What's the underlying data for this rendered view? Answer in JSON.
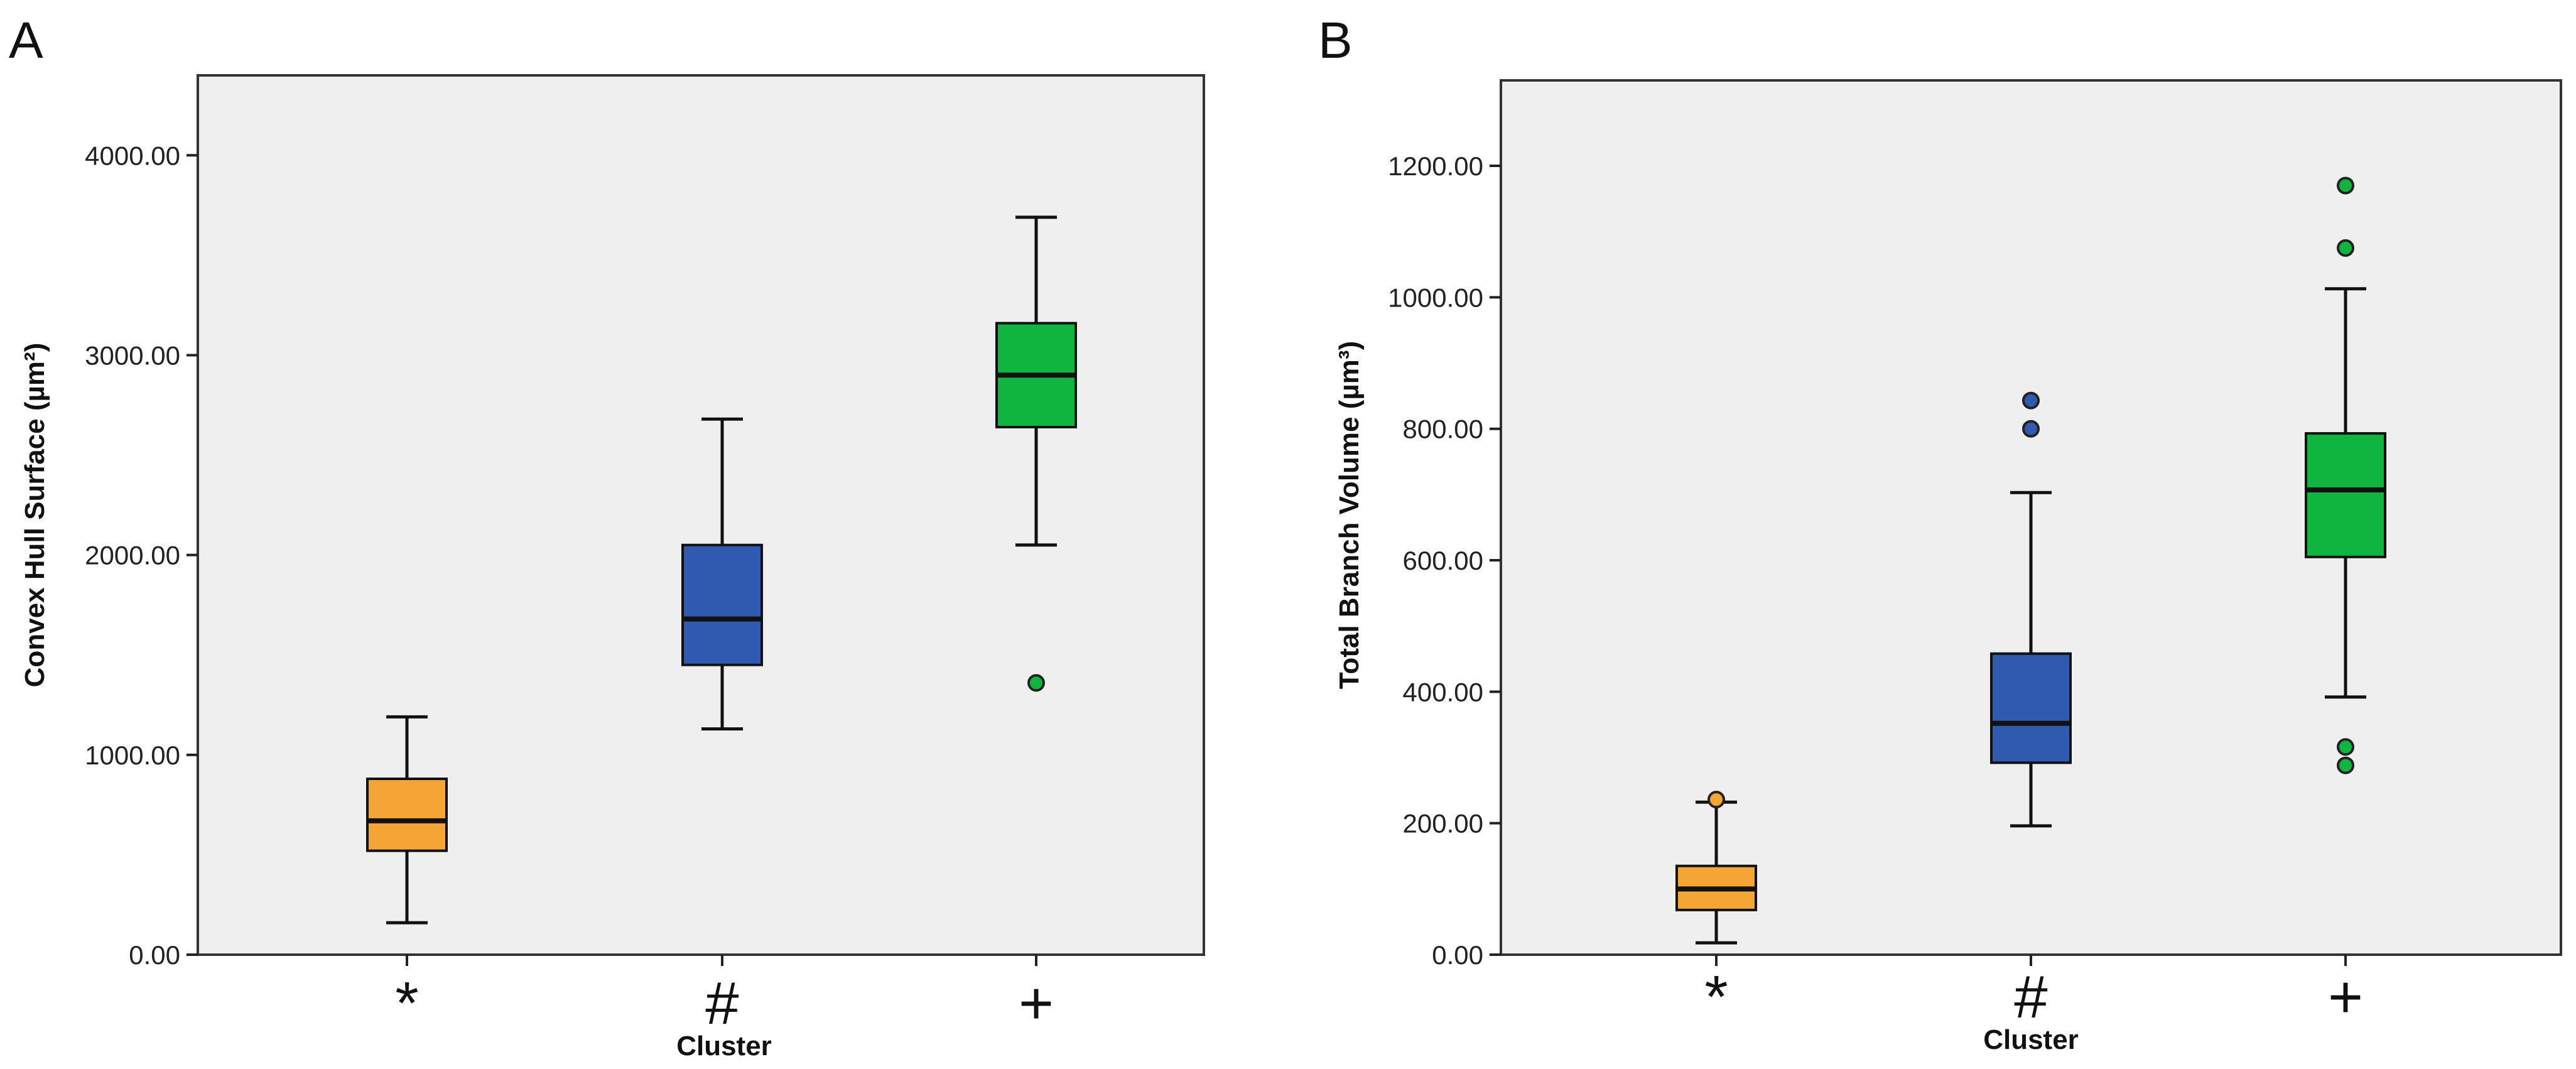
{
  "chart_data": [
    {
      "type": "box",
      "panel": "A",
      "xlabel": "Cluster",
      "ylabel": "Convex Hull Surface (µm²)",
      "ylim": [
        0,
        4400
      ],
      "yticks": [
        0,
        1000,
        2000,
        3000,
        4000
      ],
      "ytick_labels": [
        "0.00",
        "1000.00",
        "2000.00",
        "3000.00",
        "4000.00"
      ],
      "categories": [
        "*",
        "#",
        "+"
      ],
      "colors": [
        "#f5a535",
        "#2f5ab0",
        "#0fb53e"
      ],
      "boxes": [
        {
          "min": 160,
          "q1": 520,
          "median": 670,
          "q3": 880,
          "max": 1190,
          "outliers": []
        },
        {
          "min": 1130,
          "q1": 1450,
          "median": 1680,
          "q3": 2050,
          "max": 2680,
          "outliers": []
        },
        {
          "min": 2050,
          "q1": 2640,
          "median": 2900,
          "q3": 3160,
          "max": 3690,
          "outliers": [
            1360
          ]
        }
      ]
    },
    {
      "type": "box",
      "panel": "B",
      "xlabel": "Cluster",
      "ylabel": "Total Branch Volume (µm³)",
      "ylim": [
        0,
        1330
      ],
      "yticks": [
        0,
        200,
        400,
        600,
        800,
        1000,
        1200
      ],
      "ytick_labels": [
        "0.00",
        "200.00",
        "400.00",
        "600.00",
        "800.00",
        "1000.00",
        "1200.00"
      ],
      "categories": [
        "*",
        "#",
        "+"
      ],
      "colors": [
        "#f5a535",
        "#2f5ab0",
        "#0fb53e"
      ],
      "boxes": [
        {
          "min": 18,
          "q1": 68,
          "median": 100,
          "q3": 135,
          "max": 232,
          "outliers": [
            236
          ]
        },
        {
          "min": 196,
          "q1": 292,
          "median": 352,
          "q3": 458,
          "max": 703,
          "outliers": [
            800,
            843
          ]
        },
        {
          "min": 392,
          "q1": 605,
          "median": 707,
          "q3": 793,
          "max": 1013,
          "outliers": [
            1170,
            1075,
            316,
            288
          ]
        }
      ]
    }
  ]
}
